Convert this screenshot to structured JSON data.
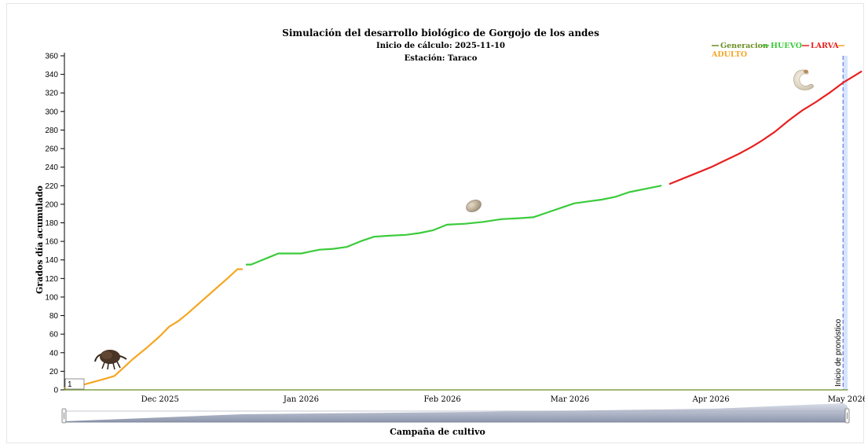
{
  "chart_data": {
    "type": "line",
    "title": "Simulación del desarrollo biológico de Gorgojo de los andes",
    "subtitle_1": "Inicio de cálculo: 2025-11-10",
    "subtitle_2": "Estación: Taraco",
    "xlabel": "Campaña de cultivo",
    "ylabel": "Grados día acumulado",
    "ylim": [
      0,
      360
    ],
    "yticks": [
      0,
      20,
      40,
      60,
      80,
      100,
      120,
      140,
      160,
      180,
      200,
      220,
      240,
      260,
      280,
      300,
      320,
      340,
      360
    ],
    "xlim": [
      "2025-11-10",
      "2026-05-01"
    ],
    "xticks": [
      {
        "date": "2025-12-01",
        "label": "Dec 2025"
      },
      {
        "date": "2026-01-01",
        "label": "Jan 2026"
      },
      {
        "date": "2026-02-01",
        "label": "Feb 2026"
      },
      {
        "date": "2026-03-01",
        "label": "Mar 2026"
      },
      {
        "date": "2026-04-01",
        "label": "Apr 2026"
      },
      {
        "date": "2026-05-01",
        "label": "May 2026"
      }
    ],
    "grid": false,
    "legend_position": "top-right",
    "forecast": {
      "start": "2026-04-30",
      "label": "Inicio de pronóstico"
    },
    "annotation_box": "1",
    "series": [
      {
        "name": "Generacion",
        "color": "#6b8e23",
        "points": [
          [
            "2025-11-10",
            0
          ],
          [
            "2026-05-01",
            0
          ]
        ]
      },
      {
        "name": "HUEVO",
        "color": "#3bcb3b",
        "points": [
          [
            "2025-12-20",
            135
          ],
          [
            "2025-12-21",
            135
          ],
          [
            "2025-12-23",
            139
          ],
          [
            "2025-12-25",
            143
          ],
          [
            "2025-12-27",
            147
          ],
          [
            "2025-12-29",
            147
          ],
          [
            "2026-01-01",
            147
          ],
          [
            "2026-01-03",
            149
          ],
          [
            "2026-01-05",
            151
          ],
          [
            "2026-01-08",
            152
          ],
          [
            "2026-01-11",
            154
          ],
          [
            "2026-01-14",
            160
          ],
          [
            "2026-01-17",
            165
          ],
          [
            "2026-01-20",
            166
          ],
          [
            "2026-01-24",
            167
          ],
          [
            "2026-01-27",
            169
          ],
          [
            "2026-01-30",
            172
          ],
          [
            "2026-02-02",
            178
          ],
          [
            "2026-02-06",
            179
          ],
          [
            "2026-02-10",
            181
          ],
          [
            "2026-02-14",
            184
          ],
          [
            "2026-02-18",
            185
          ],
          [
            "2026-02-21",
            186
          ],
          [
            "2026-02-24",
            191
          ],
          [
            "2026-02-27",
            196
          ],
          [
            "2026-03-02",
            201
          ],
          [
            "2026-03-05",
            203
          ],
          [
            "2026-03-08",
            205
          ],
          [
            "2026-03-11",
            208
          ],
          [
            "2026-03-14",
            213
          ],
          [
            "2026-03-18",
            217
          ],
          [
            "2026-03-21",
            220
          ]
        ]
      },
      {
        "name": "LARVA",
        "color": "#e82020",
        "points": [
          [
            "2026-03-23",
            222
          ],
          [
            "2026-03-26",
            228
          ],
          [
            "2026-03-29",
            234
          ],
          [
            "2026-04-01",
            240
          ],
          [
            "2026-04-04",
            247
          ],
          [
            "2026-04-07",
            254
          ],
          [
            "2026-04-10",
            262
          ],
          [
            "2026-04-12",
            268
          ],
          [
            "2026-04-15",
            278
          ],
          [
            "2026-04-18",
            290
          ],
          [
            "2026-04-21",
            301
          ],
          [
            "2026-04-24",
            310
          ],
          [
            "2026-04-27",
            320
          ],
          [
            "2026-04-30",
            331
          ],
          [
            "2026-05-02",
            337
          ],
          [
            "2026-05-04",
            343
          ]
        ]
      },
      {
        "name": "ADULTO",
        "color": "#f5a623",
        "points": [
          [
            "2025-11-10",
            2
          ],
          [
            "2025-11-13",
            4
          ],
          [
            "2025-11-16",
            8
          ],
          [
            "2025-11-19",
            12
          ],
          [
            "2025-11-21",
            15
          ],
          [
            "2025-11-23",
            24
          ],
          [
            "2025-11-25",
            33
          ],
          [
            "2025-11-28",
            45
          ],
          [
            "2025-12-01",
            58
          ],
          [
            "2025-12-03",
            68
          ],
          [
            "2025-12-05",
            74
          ],
          [
            "2025-12-07",
            82
          ],
          [
            "2025-12-10",
            95
          ],
          [
            "2025-12-13",
            108
          ],
          [
            "2025-12-16",
            121
          ],
          [
            "2025-12-18",
            130
          ],
          [
            "2025-12-19",
            130
          ]
        ]
      }
    ]
  },
  "icons": {
    "adulto": "weevil-icon",
    "huevo": "egg-icon",
    "larva": "larva-icon"
  }
}
